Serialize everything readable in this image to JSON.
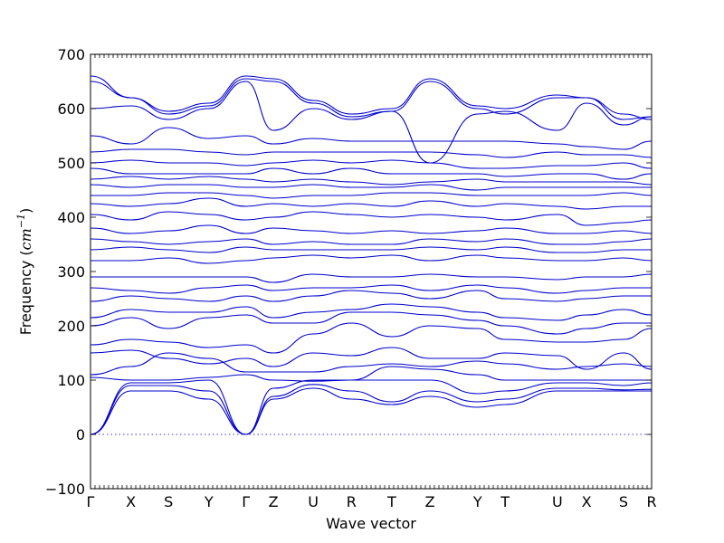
{
  "chart_data": {
    "type": "line",
    "xlabel": "Wave vector",
    "ylabel": "Frequency (cm^-1)",
    "ylabel_parts": {
      "text": "Frequency ",
      "unit_base": "cm",
      "unit_exp": "−1"
    },
    "ylim": [
      -100,
      700
    ],
    "yticks": [
      -100,
      0,
      100,
      200,
      300,
      400,
      500,
      600,
      700
    ],
    "grid": false,
    "legend": "none",
    "line_color": "#0000cc",
    "path_coordinate_range": [
      0,
      1
    ],
    "high_symmetry_points": [
      {
        "label": "Γ",
        "x": 0.0
      },
      {
        "label": "X",
        "x": 0.072
      },
      {
        "label": "S",
        "x": 0.139
      },
      {
        "label": "Y",
        "x": 0.211
      },
      {
        "label": "Γ",
        "x": 0.277
      },
      {
        "label": "Z",
        "x": 0.326
      },
      {
        "label": "U",
        "x": 0.397
      },
      {
        "label": "R",
        "x": 0.465
      },
      {
        "label": "T",
        "x": 0.537
      },
      {
        "label": "Z",
        "x": 0.605
      },
      {
        "label": "Y",
        "x": 0.69
      },
      {
        "label": "T",
        "x": 0.739
      },
      {
        "label": "U",
        "x": 0.832
      },
      {
        "label": "X",
        "x": 0.884
      },
      {
        "label": "S",
        "x": 0.95
      },
      {
        "label": "R",
        "x": 1.0
      }
    ],
    "zero_line_value": 0,
    "series": [
      {
        "x": [
          0,
          0.072,
          0.139,
          0.211,
          0.277,
          0.326,
          0.397,
          0.465,
          0.537,
          0.605,
          0.69,
          0.739,
          0.832,
          0.884,
          0.95,
          1.0
        ],
        "y": [
          0,
          80,
          80,
          65,
          0,
          65,
          85,
          65,
          55,
          70,
          50,
          55,
          80,
          80,
          80,
          80
        ]
      },
      {
        "x": [
          0,
          0.072,
          0.139,
          0.211,
          0.277,
          0.326,
          0.397,
          0.465,
          0.537,
          0.605,
          0.69,
          0.739,
          0.832,
          0.884,
          0.95,
          1.0
        ],
        "y": [
          0,
          90,
          90,
          80,
          0,
          70,
          92,
          80,
          60,
          80,
          60,
          65,
          85,
          85,
          82,
          83
        ]
      },
      {
        "x": [
          0,
          0.072,
          0.139,
          0.211,
          0.277,
          0.326,
          0.397,
          0.465,
          0.537,
          0.605,
          0.69,
          0.739,
          0.832,
          0.884,
          0.95,
          1.0
        ],
        "y": [
          0,
          95,
          95,
          100,
          0,
          85,
          100,
          100,
          100,
          100,
          75,
          80,
          95,
          95,
          90,
          95
        ]
      },
      {
        "x": [
          0,
          0.072,
          0.139,
          0.211,
          0.277,
          0.326,
          0.397,
          0.465,
          0.537,
          0.605,
          0.69,
          0.739,
          0.832,
          0.884,
          0.95,
          1.0
        ],
        "y": [
          105,
          100,
          100,
          105,
          110,
          100,
          98,
          100,
          125,
          120,
          110,
          100,
          100,
          100,
          100,
          100
        ]
      },
      {
        "x": [
          0,
          0.072,
          0.139,
          0.211,
          0.277,
          0.326,
          0.397,
          0.465,
          0.537,
          0.605,
          0.69,
          0.739,
          0.832,
          0.884,
          0.95,
          1.0
        ],
        "y": [
          110,
          125,
          150,
          140,
          115,
          115,
          115,
          125,
          130,
          125,
          135,
          130,
          120,
          125,
          130,
          125
        ]
      },
      {
        "x": [
          0,
          0.072,
          0.139,
          0.211,
          0.277,
          0.326,
          0.397,
          0.465,
          0.537,
          0.605,
          0.69,
          0.739,
          0.832,
          0.884,
          0.95,
          1.0
        ],
        "y": [
          150,
          155,
          140,
          130,
          140,
          125,
          150,
          145,
          160,
          140,
          140,
          150,
          145,
          120,
          150,
          120
        ]
      },
      {
        "x": [
          0,
          0.072,
          0.139,
          0.211,
          0.277,
          0.326,
          0.397,
          0.465,
          0.537,
          0.605,
          0.69,
          0.739,
          0.832,
          0.884,
          0.95,
          1.0
        ],
        "y": [
          165,
          175,
          170,
          160,
          165,
          150,
          185,
          205,
          180,
          200,
          195,
          175,
          170,
          170,
          175,
          195
        ]
      },
      {
        "x": [
          0,
          0.072,
          0.139,
          0.211,
          0.277,
          0.326,
          0.397,
          0.465,
          0.537,
          0.605,
          0.69,
          0.739,
          0.832,
          0.884,
          0.95,
          1.0
        ],
        "y": [
          200,
          215,
          195,
          215,
          220,
          205,
          205,
          225,
          225,
          220,
          210,
          200,
          185,
          195,
          205,
          205
        ]
      },
      {
        "x": [
          0,
          0.072,
          0.139,
          0.211,
          0.277,
          0.326,
          0.397,
          0.465,
          0.537,
          0.605,
          0.69,
          0.739,
          0.832,
          0.884,
          0.95,
          1.0
        ],
        "y": [
          215,
          230,
          225,
          225,
          235,
          215,
          225,
          230,
          240,
          235,
          225,
          215,
          210,
          220,
          230,
          220
        ]
      },
      {
        "x": [
          0,
          0.072,
          0.139,
          0.211,
          0.277,
          0.326,
          0.397,
          0.465,
          0.537,
          0.605,
          0.69,
          0.739,
          0.832,
          0.884,
          0.95,
          1.0
        ],
        "y": [
          245,
          255,
          250,
          245,
          255,
          245,
          255,
          265,
          260,
          250,
          265,
          250,
          245,
          250,
          255,
          255
        ]
      },
      {
        "x": [
          0,
          0.072,
          0.139,
          0.211,
          0.277,
          0.326,
          0.397,
          0.465,
          0.537,
          0.605,
          0.69,
          0.739,
          0.832,
          0.884,
          0.95,
          1.0
        ],
        "y": [
          270,
          265,
          260,
          270,
          275,
          265,
          270,
          270,
          275,
          265,
          275,
          270,
          260,
          265,
          270,
          270
        ]
      },
      {
        "x": [
          0,
          0.072,
          0.139,
          0.211,
          0.277,
          0.326,
          0.397,
          0.465,
          0.537,
          0.605,
          0.69,
          0.739,
          0.832,
          0.884,
          0.95,
          1.0
        ],
        "y": [
          290,
          290,
          290,
          290,
          290,
          280,
          295,
          290,
          290,
          295,
          290,
          290,
          285,
          290,
          290,
          295
        ]
      },
      {
        "x": [
          0,
          0.072,
          0.139,
          0.211,
          0.277,
          0.326,
          0.397,
          0.465,
          0.537,
          0.605,
          0.69,
          0.739,
          0.832,
          0.884,
          0.95,
          1.0
        ],
        "y": [
          320,
          320,
          325,
          315,
          320,
          325,
          330,
          325,
          330,
          320,
          330,
          325,
          320,
          320,
          325,
          320
        ]
      },
      {
        "x": [
          0,
          0.072,
          0.139,
          0.211,
          0.277,
          0.326,
          0.397,
          0.465,
          0.537,
          0.605,
          0.69,
          0.739,
          0.832,
          0.884,
          0.95,
          1.0
        ],
        "y": [
          340,
          345,
          340,
          335,
          345,
          340,
          340,
          340,
          340,
          345,
          340,
          345,
          335,
          335,
          340,
          340
        ]
      },
      {
        "x": [
          0,
          0.072,
          0.139,
          0.211,
          0.277,
          0.326,
          0.397,
          0.465,
          0.537,
          0.605,
          0.69,
          0.739,
          0.832,
          0.884,
          0.95,
          1.0
        ],
        "y": [
          360,
          355,
          350,
          355,
          360,
          350,
          355,
          350,
          350,
          360,
          355,
          360,
          350,
          350,
          355,
          360
        ]
      },
      {
        "x": [
          0,
          0.072,
          0.139,
          0.211,
          0.277,
          0.326,
          0.397,
          0.465,
          0.537,
          0.605,
          0.69,
          0.739,
          0.832,
          0.884,
          0.95,
          1.0
        ],
        "y": [
          380,
          370,
          375,
          385,
          370,
          380,
          375,
          370,
          375,
          370,
          375,
          380,
          370,
          370,
          375,
          370
        ]
      },
      {
        "x": [
          0,
          0.072,
          0.139,
          0.211,
          0.277,
          0.326,
          0.397,
          0.465,
          0.537,
          0.605,
          0.69,
          0.739,
          0.832,
          0.884,
          0.95,
          1.0
        ],
        "y": [
          405,
          395,
          410,
          405,
          395,
          400,
          410,
          405,
          400,
          405,
          400,
          395,
          405,
          385,
          390,
          395
        ]
      },
      {
        "x": [
          0,
          0.072,
          0.139,
          0.211,
          0.277,
          0.326,
          0.397,
          0.465,
          0.537,
          0.605,
          0.69,
          0.739,
          0.832,
          0.884,
          0.95,
          1.0
        ],
        "y": [
          425,
          420,
          425,
          435,
          420,
          425,
          420,
          425,
          420,
          430,
          420,
          425,
          420,
          415,
          420,
          420
        ]
      },
      {
        "x": [
          0,
          0.072,
          0.139,
          0.211,
          0.277,
          0.326,
          0.397,
          0.465,
          0.537,
          0.605,
          0.69,
          0.739,
          0.832,
          0.884,
          0.95,
          1.0
        ],
        "y": [
          440,
          440,
          445,
          445,
          440,
          435,
          440,
          440,
          445,
          445,
          440,
          440,
          440,
          440,
          445,
          440
        ]
      },
      {
        "x": [
          0,
          0.072,
          0.139,
          0.211,
          0.277,
          0.326,
          0.397,
          0.465,
          0.537,
          0.605,
          0.69,
          0.739,
          0.832,
          0.884,
          0.95,
          1.0
        ],
        "y": [
          460,
          455,
          460,
          460,
          455,
          455,
          460,
          455,
          455,
          460,
          450,
          455,
          455,
          455,
          455,
          455
        ]
      },
      {
        "x": [
          0,
          0.072,
          0.139,
          0.211,
          0.277,
          0.326,
          0.397,
          0.465,
          0.537,
          0.605,
          0.69,
          0.739,
          0.832,
          0.884,
          0.95,
          1.0
        ],
        "y": [
          470,
          475,
          470,
          475,
          470,
          465,
          470,
          465,
          460,
          465,
          470,
          465,
          465,
          465,
          465,
          460
        ]
      },
      {
        "x": [
          0,
          0.072,
          0.139,
          0.211,
          0.277,
          0.326,
          0.397,
          0.465,
          0.537,
          0.605,
          0.69,
          0.739,
          0.832,
          0.884,
          0.95,
          1.0
        ],
        "y": [
          490,
          480,
          480,
          480,
          480,
          490,
          480,
          490,
          480,
          480,
          480,
          475,
          480,
          480,
          470,
          480
        ]
      },
      {
        "x": [
          0,
          0.072,
          0.139,
          0.211,
          0.277,
          0.326,
          0.397,
          0.465,
          0.537,
          0.605,
          0.69,
          0.739,
          0.832,
          0.884,
          0.95,
          1.0
        ],
        "y": [
          500,
          505,
          500,
          500,
          495,
          500,
          505,
          500,
          505,
          500,
          490,
          490,
          495,
          495,
          500,
          490
        ]
      },
      {
        "x": [
          0,
          0.072,
          0.139,
          0.211,
          0.277,
          0.326,
          0.397,
          0.465,
          0.537,
          0.605,
          0.69,
          0.739,
          0.832,
          0.884,
          0.95,
          1.0
        ],
        "y": [
          520,
          525,
          525,
          520,
          515,
          520,
          520,
          520,
          520,
          520,
          515,
          510,
          520,
          515,
          515,
          510
        ]
      },
      {
        "x": [
          0,
          0.072,
          0.139,
          0.211,
          0.277,
          0.326,
          0.397,
          0.465,
          0.537,
          0.605,
          0.69,
          0.739,
          0.832,
          0.884,
          0.95,
          1.0
        ],
        "y": [
          550,
          535,
          565,
          545,
          550,
          535,
          545,
          540,
          540,
          540,
          540,
          540,
          535,
          530,
          525,
          540
        ]
      },
      {
        "x": [
          0,
          0.072,
          0.139,
          0.211,
          0.277,
          0.326,
          0.397,
          0.465,
          0.537,
          0.605,
          0.69,
          0.739,
          0.832,
          0.884,
          0.95,
          1.0
        ],
        "y": [
          600,
          605,
          580,
          600,
          650,
          560,
          600,
          580,
          595,
          500,
          590,
          595,
          560,
          610,
          570,
          585
        ]
      },
      {
        "x": [
          0,
          0.072,
          0.139,
          0.211,
          0.277,
          0.326,
          0.397,
          0.465,
          0.537,
          0.605,
          0.69,
          0.739,
          0.832,
          0.884,
          0.95,
          1.0
        ],
        "y": [
          650,
          620,
          590,
          605,
          655,
          650,
          610,
          585,
          595,
          650,
          600,
          590,
          620,
          620,
          580,
          585
        ]
      },
      {
        "x": [
          0,
          0.072,
          0.139,
          0.211,
          0.277,
          0.326,
          0.397,
          0.465,
          0.537,
          0.605,
          0.69,
          0.739,
          0.832,
          0.884,
          0.95,
          1.0
        ],
        "y": [
          660,
          620,
          595,
          610,
          660,
          655,
          615,
          590,
          600,
          655,
          605,
          600,
          625,
          620,
          590,
          580
        ]
      }
    ]
  }
}
